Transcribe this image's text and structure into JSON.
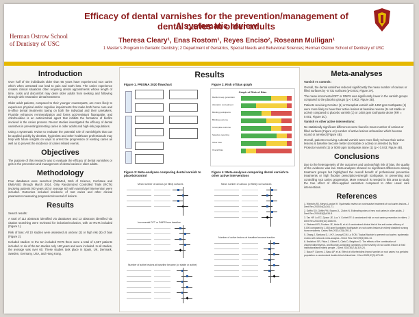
{
  "header": {
    "title": "Efficacy of dental varnishes for the prevention/management of dental caries in older adults",
    "subtitle": "A systematic review",
    "authors": "Theresa Cleary¹, Enas Rostom¹, Reyes Enciso², Roseann Mulligan¹",
    "affiliations": "1 Master’s Program in Geriatric Dentistry; 2 Department of Geriatrics, Special Needs and Behavioral Sciences; Herman Ostrow School of Dentistry of USC",
    "school_line1": "Herman Ostrow School",
    "school_line2": "of Dentistry of USC"
  },
  "left": {
    "introduction_title": "Introduction",
    "intro_p1": "Over half of the individuals older than 65 years have experienced root caries which when untreated can lead to pain and tooth loss. The caries experience creates clinical situations often requiring dental appointments whose length of time, costs and discomfort may deter older adults from seeking and following through with restorative dental treatment.",
    "intro_p2": "Older adult patients, compared to their younger counterparts, are more likely to experience physical and/or cognitive impairments that make both home care and in-office dental treatments taxing on both the individual and their caretakers. Fluoride enhances remineralization and forms acid-resistant fluorapatite, and chlorhexidine is an antimicrobial agent that inhibits the formation of biofilm involved in the caries process. Recent studies investigated the efficacy of dental varnishes in preventing/arresting caries in older adults and high-risk populations.",
    "intro_p3": "Using a systematic review to evaluate the potential role of varnish/gels that can be applied quickly by dentists, hygienists and other healthcare professionals may help with future insights on ways to arrest the progression of existing caries as well as to prevent the incidence of caries related events.",
    "objectives_title": "Objectives",
    "objectives_p": "The purpose of this research was to evaluate the efficacy of dental varnishes or gels in the prevention and management of dental caries in older adults.",
    "methodology_title": "Methodology",
    "methodology_p": "Four databases were searched (PubMed, Web of Science, Cochrane and EMBASE) through March 2024. Only Randomized Controlled Trials (RCTs) involving patients (60 years old or average 60) with varnish/gel intervention were included. Outcomes included incidence of root caries and other clinical parameters measuring progression/reversal of lesions.",
    "results_title": "Results",
    "results_p1": "Search results:",
    "results_p2": "A total of 112 abstracts identified via databases and 13 abstracts identified via citation searching were reviewed for inclusion/exclusion, with 10 RCTs included (Figure 1).",
    "results_p3": "Risk of bias: All 10 studies were assessed at unclear (2) or high risk (8) of bias (Figure 2).",
    "results_p4": "Included studies: In the ten included RCTs there were a total of 1,587 patients included. In six of the ten studies only >60 years and were included. In all studies, the average was over 60. These studies took place in Spain, UK, Denmark, Sweden, Germany, USA, and Hong Kong."
  },
  "center": {
    "results_title": "Results",
    "fig1_label": "Figure 1. PRISMA 2020 flowchart",
    "fig2_label": "Figure 2. Risk of bias graph",
    "fig3_label": "Figure 3: Meta-analyses comparing dental varnish to placebo/control",
    "fig4_label": "Figure 4: Meta-analyses comparing dental varnish to other active interventions",
    "fig3_sub1": "Mean number of carious (or filled) surfaces",
    "fig3_sub2": "Incremental DFT or DMFS from baseline",
    "fig3_sub3": "Number of active lesions at baseline became (or stable or active)",
    "fig4_sub1": "Mean number of carious (or filled) root surfaces",
    "fig4_sub2": "Number of active lesions at baseline became inactive",
    "rob_title": "Graph of Risk of Bias",
    "rob_rows": [
      "Random seq. generation",
      "Allocation concealment",
      "Blinding participants",
      "Blinding outcome",
      "Incomplete outcome",
      "Selective reporting",
      "Other bias",
      "Overall bias"
    ],
    "rob_colors": {
      "low": "#4caf50",
      "unclear": "#f4d03f",
      "high": "#d9534f"
    }
  },
  "right": {
    "meta_title": "Meta-analyses",
    "varnish_vs_controls": "Varnish vs controls:",
    "mv1": "Overall, the dental varnishes reduced significantly the mean number of carious or filled surfaces by -0.731 surfaces (p<0.001; Figure 3A).",
    "mv2": "The mean incremental DFT or DMFS was significantly lower in the varnish groups compared to the placebo groups (p < 0.002; Figure 3B).",
    "mv3": "Patients receiving Cervitec (1) or Duraphat varnish with 1450 ppm toothpaste (1) were more likely to have their active lesions at baseline reverse (to not stable or active) compared to placebo varnish (1) or 1450 ppm toothpaste alone (RR = 0.001; Figure 3C).",
    "varnish_vs_other": "Varnish vs other active interventions:",
    "mo1": "No statistically significant differences were found in mean number of carious or filled surfaces (Figure 4A) number of active lesions at baseline which became sound or arrested (Figure 4B).",
    "mo2": "Overall, patients receiving a dental varnish were more likely to have their active lesions at baseline become better (not stable or active) or arrested by fluor Protector varnish (1) or 5000 ppm toothpaste alone (1) (p < 0.043; Figure 4B).",
    "conclusions_title": "Conclusions",
    "conclusions_p": "Due to the heterogeneity of the outcomes and unclear/high risk of bias, the quality of the evidence was low. Meta-analyses showed no significant differences among treatment groups but highlighted the overall benefit of professional preventive treatments or high fluoride prescription-strength toothpaste, in preventing and controlling root caries progression. More research is needed in this area to study the true effect of office-applied varnishes compared to other usual care interventions.",
    "references_title": "References",
    "references": [
      "1. Wierichs RJ, Meyer-Lueckel H. Systematic review on noninvasive treatment of root caries lesions. J Dent Res 2015;94(2):261-71.",
      "2. Griffin SO, Griffin PM, Swann JL, Zlobin N. Estimating rates of new root caries in older adults. J Dent Res 2004;83(8):634-8.",
      "3. Tan HP, Lo EC, Dyson JE, Luo Y, Corbet EF. A randomized trial on root caries prevention in elders. J Dent Res 2010;89(10):1086-90.",
      "4. Ekstrand KR, Poulsen JE, Hede B, et al. A randomized clinical trial of the anti-caries efficacy of 5,000 compared to 1,450 ppm fluoridated toothpaste on root caries lesions in elderly disabled nursing home residents. Caries Res 2013;47(5):391-8.",
      "5. Zhang J, Sardana D, Li KY, Leung KCM, Lo ECM. Topical fluoride to prevent root caries: systematic review with network meta-analysis. J Dent Res 2020;99(5):506-13.",
      "6. Brailsford SR, Fiske J, Gilbert S, Clark D, Beighton D. The effects of the combination of chlorhexidine/thymol- and fluoride-containing varnishes on the severity of root caries lesions in frail institutionalised elderly people. J Dent 2002;30(7-8):319-24.",
      "7. Baca P, Clavero J, Baca AP, et al. Effect of chlorhexidine-thymol varnish on root caries in a geriatric population: a randomized double-blind clinical trial. J Dent 2009;37(9):679-85."
    ]
  }
}
